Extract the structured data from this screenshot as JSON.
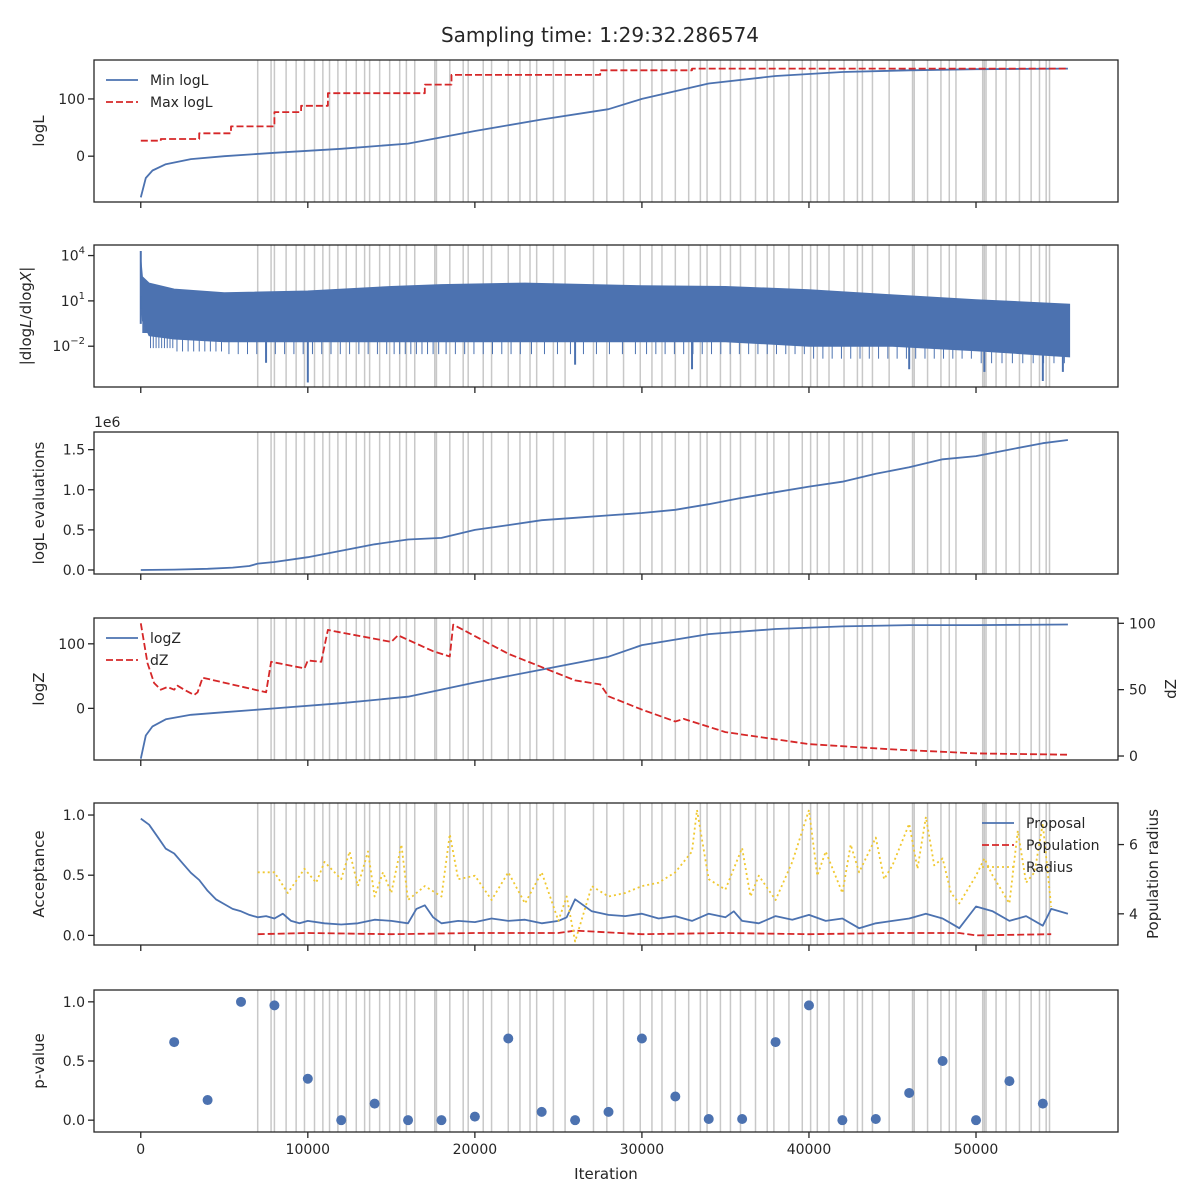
{
  "figure": {
    "title": "Sampling time: 1:29:32.286574",
    "xlabel": "Iteration",
    "x_ticks": [
      0,
      10000,
      20000,
      30000,
      40000,
      50000
    ],
    "x_tick_labels": [
      "0",
      "10000",
      "20000",
      "30000",
      "40000",
      "50000"
    ],
    "xlim": [
      -2800,
      58500
    ],
    "colors": {
      "blue": "#4c72b0",
      "red": "#d62728",
      "yellow": "#f0c830",
      "grey_lines": "#c8c8c8",
      "axis": "#262626"
    }
  },
  "insertion_iterations": [
    7000,
    7800,
    8000,
    8700,
    9300,
    9800,
    10400,
    10900,
    11300,
    11800,
    12300,
    12900,
    13400,
    13700,
    14300,
    14900,
    15500,
    15900,
    16400,
    17600,
    17700,
    18500,
    19300,
    19600,
    20500,
    21000,
    22000,
    22700,
    23300,
    23700,
    24700,
    25400,
    27100,
    27900,
    28900,
    29900,
    30600,
    31200,
    32000,
    32800,
    33500,
    33900,
    34700,
    35300,
    35900,
    36800,
    37500,
    37900,
    38800,
    39600,
    40100,
    40500,
    41200,
    42100,
    42900,
    43200,
    43800,
    44800,
    46200,
    46300,
    47100,
    47900,
    48400,
    48800,
    50400,
    50500,
    50600,
    51200,
    51800,
    52600,
    53300,
    53800,
    54200,
    54400
  ],
  "chart_data": [
    {
      "type": "line",
      "ylabel": "logL",
      "yticks": [
        0,
        100
      ],
      "ylim": [
        -80,
        168
      ],
      "legend": "top-left",
      "series": [
        {
          "name": "Min logL",
          "style": "solid",
          "color": "#4c72b0",
          "x": [
            0,
            300,
            700,
            1500,
            3000,
            5000,
            8000,
            12000,
            16000,
            20000,
            24000,
            28000,
            30000,
            34000,
            38000,
            42000,
            46000,
            50000,
            55500
          ],
          "y": [
            -72,
            -38,
            -25,
            -14,
            -5,
            0,
            6,
            13,
            22,
            44,
            64,
            82,
            100,
            127,
            140,
            147,
            150,
            152,
            153
          ]
        },
        {
          "name": "Max logL",
          "style": "dashed",
          "color": "#d62728",
          "x": [
            0,
            1200,
            1200,
            3500,
            3500,
            5400,
            5400,
            8000,
            8000,
            9600,
            9600,
            11200,
            11200,
            17000,
            17000,
            18600,
            18600,
            27500,
            27500,
            33000,
            33000,
            55500
          ],
          "y": [
            27,
            27,
            30,
            30,
            40,
            40,
            52,
            52,
            77,
            77,
            88,
            88,
            110,
            110,
            125,
            125,
            142,
            142,
            150,
            150,
            153,
            153
          ]
        }
      ]
    },
    {
      "type": "line",
      "ylabel": "|dlogL/dlogX|",
      "yscale": "log",
      "ytick_labels": [
        "10^-2",
        "10^1",
        "10^4"
      ],
      "ylim": [
        2e-05,
        50000
      ],
      "envelope": {
        "x": [
          0,
          100,
          500,
          2000,
          5000,
          10000,
          15000,
          18000,
          23000,
          30000,
          35000,
          40000,
          45000,
          50000,
          55600
        ],
        "upper": [
          6000,
          400,
          150,
          60,
          35,
          45,
          90,
          120,
          150,
          100,
          90,
          55,
          25,
          12,
          6
        ],
        "lower": [
          20,
          0.5,
          0.05,
          0.03,
          0.02,
          0.02,
          0.02,
          0.02,
          0.02,
          0.02,
          0.02,
          0.01,
          0.01,
          0.005,
          0.002
        ]
      },
      "spikes": [
        {
          "x": 10000,
          "y": 4e-05
        },
        {
          "x": 33000,
          "y": 0.0003
        },
        {
          "x": 46000,
          "y": 0.0003
        },
        {
          "x": 54000,
          "y": 5e-05
        },
        {
          "x": 50500,
          "y": 0.0002
        },
        {
          "x": 26000,
          "y": 0.0006
        },
        {
          "x": 7500,
          "y": 0.0008
        },
        {
          "x": 55200,
          "y": 0.0002
        }
      ]
    },
    {
      "type": "line",
      "ylabel": "logL evaluations",
      "offset_text": "1e6",
      "yticks": [
        0,
        0.5,
        1.0,
        1.5
      ],
      "ylim": [
        -0.05,
        1.72
      ],
      "series": [
        {
          "name": "",
          "color": "#4c72b0",
          "x": [
            0,
            2000,
            4000,
            5500,
            6500,
            7000,
            8000,
            10000,
            12000,
            14000,
            16000,
            18000,
            20000,
            22000,
            24000,
            26000,
            28000,
            30000,
            32000,
            34000,
            36000,
            38000,
            40000,
            42000,
            44000,
            46000,
            48000,
            50000,
            52000,
            54000,
            55500
          ],
          "y": [
            0,
            0.005,
            0.015,
            0.03,
            0.05,
            0.08,
            0.1,
            0.16,
            0.24,
            0.32,
            0.38,
            0.4,
            0.5,
            0.56,
            0.62,
            0.65,
            0.68,
            0.71,
            0.75,
            0.82,
            0.9,
            0.97,
            1.04,
            1.1,
            1.2,
            1.28,
            1.38,
            1.42,
            1.5,
            1.58,
            1.62
          ]
        }
      ]
    },
    {
      "type": "line",
      "ylabel": "logZ",
      "ylabel_right": "dZ",
      "yticks": [
        0,
        100
      ],
      "ylim": [
        -80,
        140
      ],
      "yticks_right": [
        0,
        50,
        100
      ],
      "ylim_right": [
        -3,
        104
      ],
      "legend": "top-left",
      "series": [
        {
          "name": "logZ",
          "style": "solid",
          "color": "#4c72b0",
          "axis": "left",
          "x": [
            0,
            300,
            700,
            1500,
            3000,
            5000,
            8000,
            12000,
            16000,
            20000,
            24000,
            28000,
            30000,
            34000,
            38000,
            42000,
            46000,
            50000,
            55500
          ],
          "y": [
            -78,
            -42,
            -28,
            -17,
            -10,
            -6,
            0,
            8,
            18,
            40,
            60,
            80,
            98,
            115,
            123,
            127,
            129,
            129,
            130
          ]
        },
        {
          "name": "dZ",
          "style": "dashed",
          "color": "#d62728",
          "axis": "right",
          "x": [
            0,
            400,
            800,
            1200,
            1600,
            2000,
            2200,
            2600,
            3200,
            3400,
            3700,
            7500,
            7800,
            9800,
            10000,
            10800,
            11200,
            11600,
            15000,
            15400,
            17500,
            18500,
            18700,
            22000,
            26000,
            27500,
            28000,
            30000,
            32000,
            32500,
            35000,
            40000,
            45000,
            50000,
            55500
          ],
          "y": [
            100,
            70,
            55,
            50,
            52,
            50,
            53,
            50,
            46,
            48,
            59,
            48,
            71,
            66,
            72,
            71,
            95,
            94,
            86,
            91,
            79,
            75,
            99,
            77,
            57,
            54,
            45,
            35,
            26,
            28,
            18,
            9,
            5,
            2,
            1
          ]
        }
      ]
    },
    {
      "type": "line",
      "ylabel": "Acceptance",
      "ylabel_right": "Population radius",
      "yticks": [
        0.0,
        0.5,
        1.0
      ],
      "ylim": [
        -0.08,
        1.1
      ],
      "yticks_right": [
        4,
        6
      ],
      "ylim_right": [
        3.1,
        7.2
      ],
      "legend": "top-right",
      "series": [
        {
          "name": "Proposal",
          "style": "solid",
          "color": "#4c72b0",
          "axis": "left",
          "x": [
            0,
            500,
            1000,
            1500,
            2000,
            2500,
            3000,
            3500,
            4000,
            4500,
            5000,
            5500,
            6000,
            6500,
            7000,
            7500,
            8000,
            8500,
            9000,
            9500,
            10000,
            11000,
            12000,
            13000,
            14000,
            15000,
            16000,
            16500,
            17000,
            17500,
            18000,
            19000,
            20000,
            21000,
            22000,
            23000,
            24000,
            25000,
            25500,
            26000,
            27000,
            28000,
            29000,
            30000,
            31000,
            32000,
            33000,
            34000,
            35000,
            35500,
            36000,
            37000,
            38000,
            39000,
            40000,
            41000,
            42000,
            42500,
            43000,
            44000,
            45000,
            46000,
            47000,
            48000,
            48500,
            49000,
            50000,
            51000,
            52000,
            53000,
            54000,
            54500,
            55500
          ],
          "y": [
            0.97,
            0.92,
            0.82,
            0.72,
            0.68,
            0.6,
            0.52,
            0.46,
            0.37,
            0.3,
            0.26,
            0.22,
            0.2,
            0.17,
            0.15,
            0.16,
            0.14,
            0.18,
            0.12,
            0.1,
            0.12,
            0.1,
            0.09,
            0.1,
            0.13,
            0.12,
            0.1,
            0.22,
            0.25,
            0.15,
            0.1,
            0.12,
            0.11,
            0.14,
            0.12,
            0.13,
            0.1,
            0.12,
            0.15,
            0.3,
            0.2,
            0.17,
            0.16,
            0.18,
            0.14,
            0.16,
            0.12,
            0.18,
            0.15,
            0.2,
            0.12,
            0.1,
            0.16,
            0.13,
            0.17,
            0.12,
            0.14,
            0.1,
            0.06,
            0.1,
            0.12,
            0.14,
            0.18,
            0.14,
            0.1,
            0.06,
            0.24,
            0.2,
            0.12,
            0.16,
            0.08,
            0.22,
            0.18
          ]
        },
        {
          "name": "Population",
          "style": "dashed",
          "color": "#d62728",
          "axis": "left",
          "x": [
            7000,
            10000,
            15000,
            20000,
            25000,
            26000,
            30000,
            35000,
            40000,
            45000,
            49000,
            50000,
            54500
          ],
          "y": [
            0.01,
            0.02,
            0.01,
            0.02,
            0.02,
            0.04,
            0.01,
            0.02,
            0.01,
            0.02,
            0.02,
            0.0,
            0.01
          ]
        },
        {
          "name": "Radius",
          "style": "dotted",
          "color": "#f0c830",
          "axis": "right",
          "x": [
            7000,
            8000,
            8800,
            9800,
            10500,
            11000,
            12000,
            12500,
            13000,
            13600,
            14000,
            14500,
            15000,
            15600,
            16000,
            17000,
            18000,
            18500,
            19000,
            20000,
            21000,
            22000,
            23000,
            24000,
            25000,
            25500,
            26000,
            27000,
            28000,
            29000,
            30000,
            31000,
            32000,
            33000,
            33300,
            34000,
            35000,
            36000,
            36500,
            37000,
            38000,
            39000,
            40000,
            40500,
            41000,
            42000,
            42500,
            43000,
            44000,
            44500,
            45000,
            46000,
            46500,
            47000,
            47500,
            48000,
            48500,
            49000,
            50000,
            50500,
            51000,
            52000,
            52500,
            53000,
            53500,
            54000,
            54500
          ],
          "y": [
            5.2,
            5.2,
            4.6,
            5.3,
            4.9,
            5.5,
            5.0,
            5.8,
            4.8,
            5.8,
            4.5,
            5.2,
            4.6,
            6.0,
            4.4,
            4.8,
            4.5,
            6.3,
            5.0,
            5.1,
            4.4,
            5.2,
            4.3,
            5.2,
            3.8,
            4.5,
            3.2,
            4.8,
            4.5,
            4.6,
            4.8,
            4.9,
            5.2,
            5.8,
            7.0,
            5.0,
            4.7,
            5.9,
            4.5,
            5.1,
            4.4,
            5.5,
            7.0,
            5.1,
            5.8,
            4.6,
            6.0,
            5.2,
            6.2,
            5.0,
            5.4,
            6.6,
            5.3,
            6.8,
            5.4,
            5.6,
            4.6,
            4.3,
            5.1,
            5.6,
            5.1,
            4.3,
            6.4,
            4.9,
            5.2,
            6.6,
            4.2
          ]
        }
      ]
    },
    {
      "type": "scatter",
      "ylabel": "p-value",
      "yticks": [
        0.0,
        0.5,
        1.0
      ],
      "ylim": [
        -0.1,
        1.1
      ],
      "series": [
        {
          "name": "",
          "color": "#4c72b0",
          "x": [
            2000,
            4000,
            6000,
            8000,
            10000,
            12000,
            14000,
            16000,
            18000,
            20000,
            22000,
            24000,
            26000,
            28000,
            30000,
            32000,
            34000,
            36000,
            38000,
            40000,
            42000,
            44000,
            46000,
            48000,
            50000,
            52000,
            54000
          ],
          "y": [
            0.66,
            0.17,
            1.0,
            0.97,
            0.35,
            0.0,
            0.14,
            0.0,
            0.0,
            0.03,
            0.69,
            0.07,
            0.0,
            0.07,
            0.69,
            0.2,
            0.01,
            0.01,
            0.66,
            0.97,
            0.0,
            0.01,
            0.23,
            0.5,
            0.0,
            0.33,
            0.14
          ]
        }
      ]
    }
  ]
}
